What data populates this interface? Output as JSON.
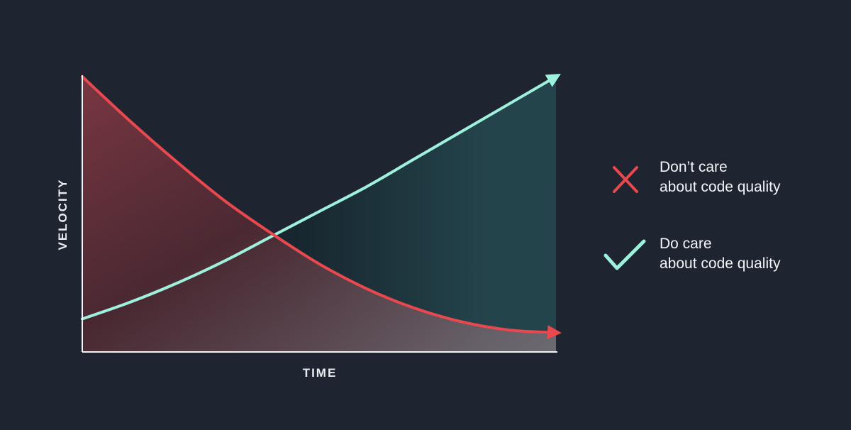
{
  "chart_data": {
    "type": "area",
    "xlabel": "TIME",
    "ylabel": "VELOCITY",
    "xlim": [
      0,
      1
    ],
    "ylim": [
      0,
      1
    ],
    "grid": false,
    "legend_position": "right",
    "series": [
      {
        "name_lines": [
          "Don’t care",
          "about code quality"
        ],
        "color": "#e8484e",
        "marker": "x-icon",
        "x": [
          0,
          0.1,
          0.2,
          0.3,
          0.4,
          0.5,
          0.6,
          0.7,
          0.8,
          0.9,
          1.0
        ],
        "y": [
          1.0,
          0.84,
          0.69,
          0.55,
          0.43,
          0.32,
          0.23,
          0.16,
          0.11,
          0.08,
          0.07
        ]
      },
      {
        "name_lines": [
          "Do care",
          "about code quality"
        ],
        "color": "#9ff0dc",
        "marker": "check-icon",
        "x": [
          0,
          0.1,
          0.2,
          0.3,
          0.4,
          0.5,
          0.6,
          0.7,
          0.8,
          0.9,
          1.0
        ],
        "y": [
          0.12,
          0.18,
          0.25,
          0.33,
          0.42,
          0.51,
          0.6,
          0.7,
          0.8,
          0.9,
          1.0
        ]
      }
    ]
  }
}
